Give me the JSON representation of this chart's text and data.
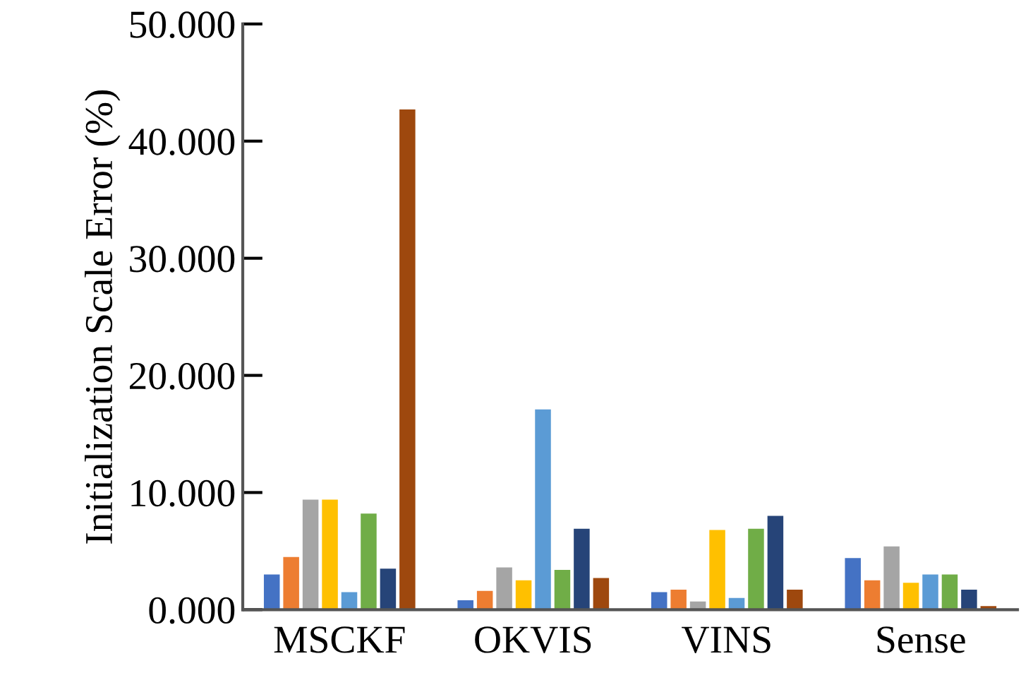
{
  "chart_data": {
    "type": "bar",
    "ylabel": "Initialization Scale Error (%)",
    "categories": [
      "MSCKF",
      "OKVIS",
      "VINS",
      "Sense"
    ],
    "series": [
      {
        "color": "#4472c4",
        "values": [
          3.0,
          0.8,
          1.5,
          4.4
        ]
      },
      {
        "color": "#ed7d31",
        "values": [
          4.5,
          1.6,
          1.7,
          2.5
        ]
      },
      {
        "color": "#a5a5a5",
        "values": [
          9.4,
          3.6,
          0.7,
          5.4
        ]
      },
      {
        "color": "#ffc000",
        "values": [
          9.4,
          2.5,
          6.8,
          2.3
        ]
      },
      {
        "color": "#5b9bd5",
        "values": [
          1.5,
          17.1,
          1.0,
          3.0
        ]
      },
      {
        "color": "#70ad47",
        "values": [
          8.2,
          3.4,
          6.9,
          3.0
        ]
      },
      {
        "color": "#264478",
        "values": [
          3.5,
          6.9,
          8.0,
          1.7
        ]
      },
      {
        "color": "#9e480e",
        "values": [
          42.7,
          2.7,
          1.7,
          0.3
        ]
      }
    ],
    "ylim": [
      0,
      50
    ],
    "yticks": [
      {
        "value": 0,
        "label": "0.000"
      },
      {
        "value": 10,
        "label": "10.000"
      },
      {
        "value": 20,
        "label": "20.000"
      },
      {
        "value": 30,
        "label": "30.000"
      },
      {
        "value": 40,
        "label": "40.000"
      },
      {
        "value": 50,
        "label": "50.000"
      }
    ],
    "grid": false
  }
}
